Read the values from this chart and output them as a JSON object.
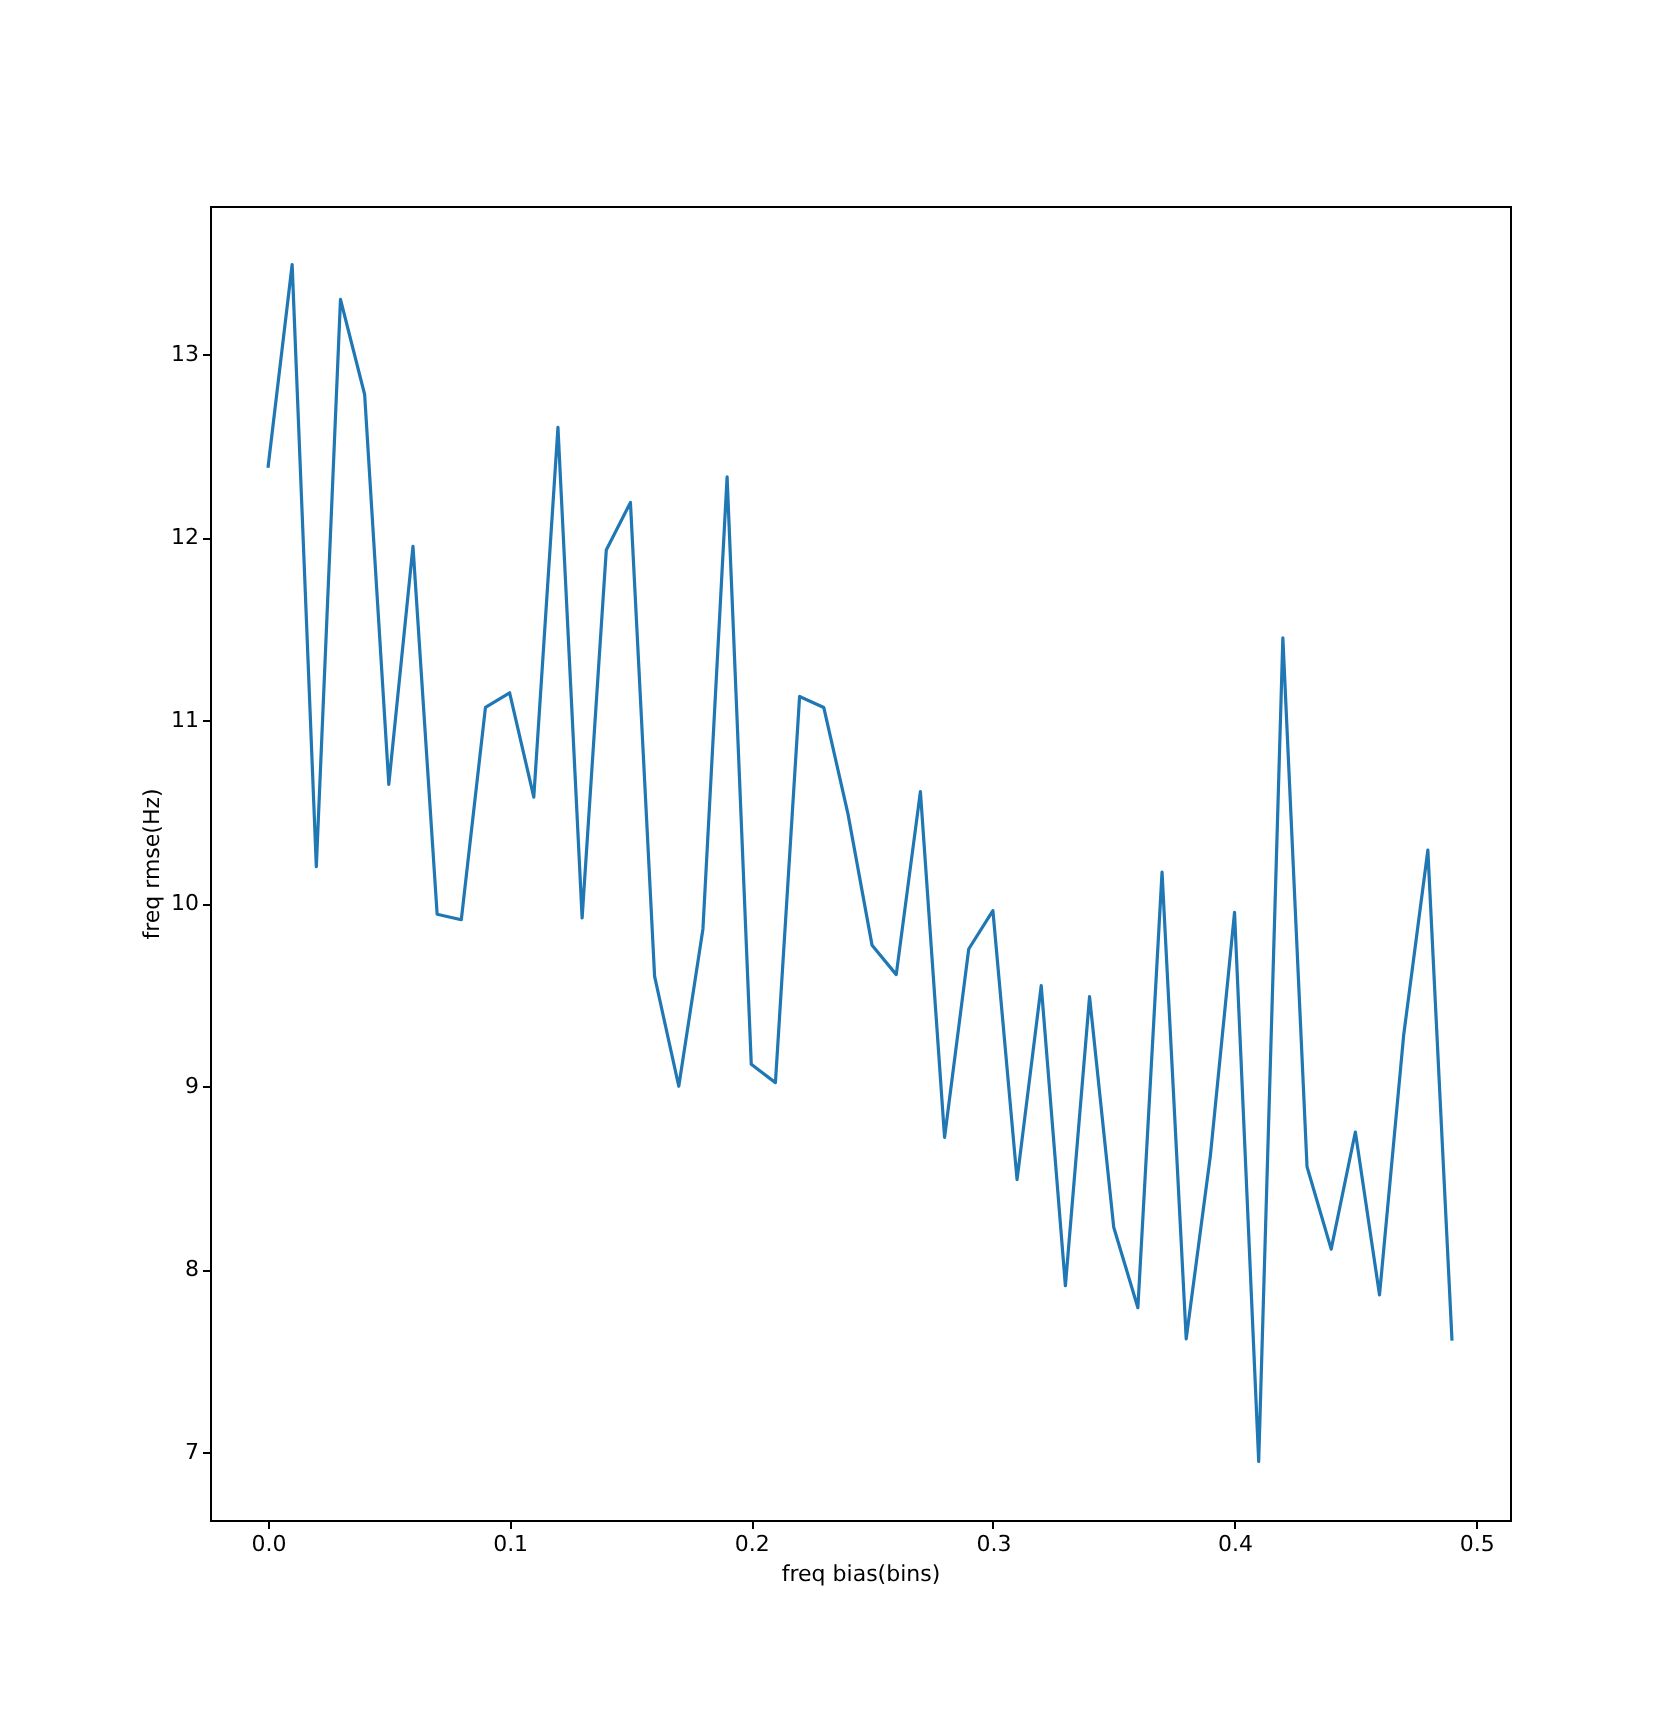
{
  "chart_data": {
    "type": "line",
    "xlabel": "freq bias(bins)",
    "ylabel": "freq rmse(Hz)",
    "x": [
      0,
      0.01,
      0.02,
      0.03,
      0.04,
      0.05,
      0.06,
      0.07,
      0.08,
      0.09,
      0.1,
      0.11,
      0.12,
      0.13,
      0.14,
      0.15,
      0.16,
      0.17,
      0.18,
      0.19,
      0.2,
      0.21,
      0.22,
      0.23,
      0.24,
      0.25,
      0.26,
      0.27,
      0.28,
      0.29,
      0.3,
      0.31,
      0.32,
      0.33,
      0.34,
      0.35,
      0.36,
      0.37,
      0.38,
      0.39,
      0.4,
      0.41,
      0.42,
      0.43,
      0.44,
      0.45,
      0.46,
      0.47,
      0.48,
      0.49
    ],
    "series": [
      {
        "color": "#1f77b4",
        "values": [
          12.38,
          13.49,
          10.2,
          13.3,
          12.78,
          10.65,
          11.95,
          9.94,
          9.91,
          11.07,
          11.15,
          10.58,
          12.6,
          9.92,
          11.93,
          12.19,
          9.6,
          9.0,
          9.86,
          12.33,
          9.12,
          9.02,
          11.13,
          11.07,
          10.49,
          9.77,
          9.61,
          10.61,
          8.72,
          9.75,
          9.96,
          8.49,
          9.55,
          7.91,
          9.49,
          8.23,
          7.79,
          10.17,
          7.62,
          8.62,
          9.95,
          6.95,
          11.45,
          8.56,
          8.11,
          8.75,
          7.86,
          9.28,
          10.29,
          7.61
        ]
      }
    ],
    "xlim": [
      -0.024,
      0.514
    ],
    "ylim": [
      6.63,
      13.81
    ],
    "xticks": [
      {
        "value": 0,
        "label": "0.0"
      },
      0.1,
      0.2,
      0.3,
      0.4,
      0.5
    ],
    "yticks": [
      7,
      8,
      9,
      10,
      11,
      12,
      13
    ],
    "grid": false
  }
}
